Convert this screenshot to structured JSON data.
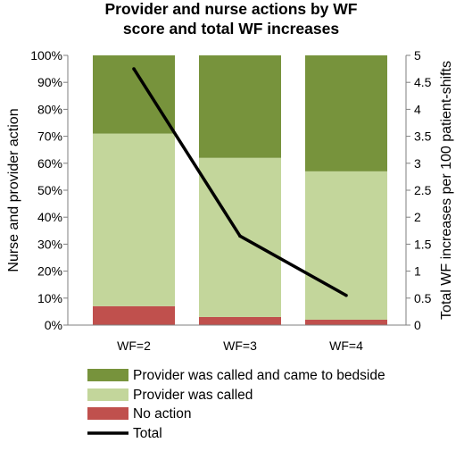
{
  "chart_data": {
    "type": "bar",
    "title_lines": [
      "Provider and nurse actions by WF",
      "score and total WF increases"
    ],
    "categories": [
      "WF=2",
      "WF=3",
      "WF=4"
    ],
    "ylabel_left": "Nurse and provider action",
    "ylabel_right": "Total WF increases per 100 patient-shifts",
    "y_left_ticks": [
      "0%",
      "10%",
      "20%",
      "30%",
      "40%",
      "50%",
      "60%",
      "70%",
      "80%",
      "90%",
      "100%"
    ],
    "y_right_ticks": [
      "0",
      "0.5",
      "1",
      "1.5",
      "2",
      "2.5",
      "3",
      "3.5",
      "4",
      "4.5",
      "5"
    ],
    "ylim_left": [
      0,
      100
    ],
    "ylim_right": [
      0,
      5
    ],
    "stacked": true,
    "grid": false,
    "legend_position": "bottom",
    "series": [
      {
        "name": "No action",
        "color": "#c0504d",
        "values": [
          7,
          3,
          2
        ]
      },
      {
        "name": "Provider was called",
        "color": "#c3d69b",
        "values": [
          64,
          59,
          55
        ]
      },
      {
        "name": "Provider was called and came to bedside",
        "color": "#77933c",
        "values": [
          29,
          38,
          43
        ]
      }
    ],
    "line_series": {
      "name": "Total",
      "color": "#000000",
      "axis": "right",
      "values": [
        4.75,
        1.65,
        0.55
      ]
    },
    "legend_order": [
      "Provider was called and came to bedside",
      "Provider was called",
      "No action",
      "Total"
    ]
  }
}
